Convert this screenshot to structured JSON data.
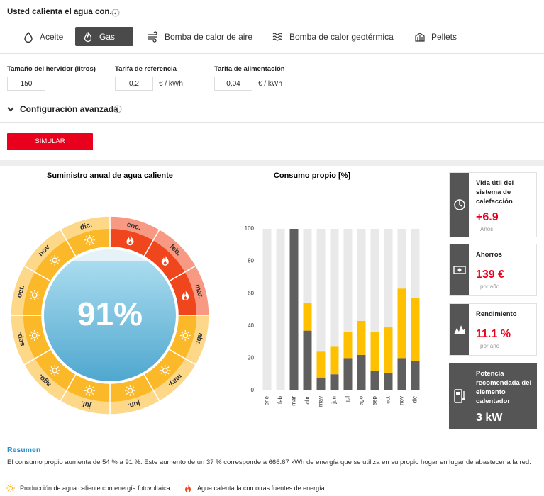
{
  "header": {
    "question": "Usted calienta el agua con..."
  },
  "tabs": [
    {
      "label": "Aceite",
      "selected": false
    },
    {
      "label": "Gas",
      "selected": true
    },
    {
      "label": "Bomba de calor de aire",
      "selected": false
    },
    {
      "label": "Bomba de calor geotérmica",
      "selected": false
    },
    {
      "label": "Pellets",
      "selected": false
    }
  ],
  "inputs": [
    {
      "label": "Tamaño del hervidor (litros)",
      "value": "150"
    },
    {
      "label": "Tarifa de referencia",
      "value": "0,2",
      "unit": "€ / kWh"
    },
    {
      "label": "Tarifa de alimentación",
      "value": "0,04",
      "unit": "€ / kWh"
    }
  ],
  "advanced": "Configuración avanzada",
  "button": "SIMULAR",
  "supply": {
    "title": "Suministro anual de agua caliente",
    "value": 91,
    "value_label": "91%",
    "colors": {
      "other": "#f0461e",
      "solar": "#fbb829"
    },
    "months": [
      {
        "label": "ene.",
        "source": "other"
      },
      {
        "label": "feb.",
        "source": "other"
      },
      {
        "label": "mar.",
        "source": "other"
      },
      {
        "label": "abr.",
        "source": "solar"
      },
      {
        "label": "may.",
        "source": "solar"
      },
      {
        "label": "jun.",
        "source": "solar"
      },
      {
        "label": "jul.",
        "source": "solar"
      },
      {
        "label": "ago.",
        "source": "solar"
      },
      {
        "label": "sep.",
        "source": "solar"
      },
      {
        "label": "oct.",
        "source": "solar"
      },
      {
        "label": "nov.",
        "source": "solar"
      },
      {
        "label": "dic.",
        "source": "solar"
      }
    ]
  },
  "chart_data": {
    "type": "bar",
    "stacked": true,
    "title": "Consumo propio [%]",
    "categories": [
      "ene",
      "feb",
      "mar",
      "abr",
      "may",
      "jun",
      "jul",
      "ago",
      "sep",
      "oct",
      "nov",
      "dic"
    ],
    "series": [
      {
        "color": "#5f5f5f",
        "values": [
          0,
          0,
          100,
          37,
          8,
          10,
          20,
          22,
          12,
          11,
          20,
          18
        ]
      },
      {
        "color": "#ffc000",
        "values": [
          0,
          0,
          0,
          17,
          16,
          17,
          16,
          21,
          24,
          28,
          43,
          39
        ]
      }
    ],
    "track_color": "#e9e9e9",
    "ylim": [
      0,
      100
    ],
    "yticks": [
      0,
      20,
      40,
      60,
      80,
      100
    ]
  },
  "cards": [
    {
      "title": "Vida útil del sistema de calefacción",
      "value": "+6.9",
      "unit": "Años"
    },
    {
      "title": "Ahorros",
      "value": "139 €",
      "unit": "por año"
    },
    {
      "title": "Rendimiento",
      "value": "11.1 %",
      "unit": "por año"
    },
    {
      "title": "Potencia recomendada del elemento calentador",
      "value": "3 kW"
    }
  ],
  "summary": {
    "title": "Resumen",
    "text": "El consumo propio aumenta de 54 % a 91 %. Este aumento de un 37 % corresponde a 666.67 kWh de energía que se utiliza en su propio hogar en lugar de abastecer a la red."
  },
  "legend": [
    {
      "label": "Producción de agua caliente con energía fotovoltaica",
      "icon": "sun"
    },
    {
      "label": "Agua calentada con otras fuentes de energía",
      "icon": "flame"
    }
  ]
}
